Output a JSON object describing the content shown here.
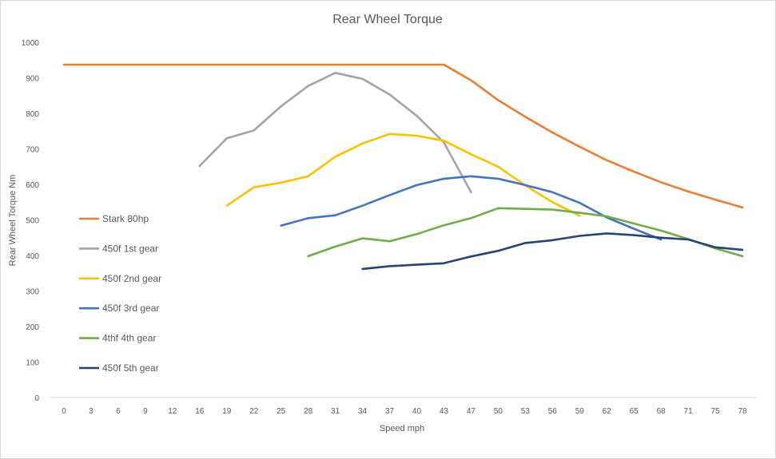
{
  "chart_data": {
    "type": "line",
    "title": "Rear Wheel Torque",
    "xlabel": "Speed mph",
    "ylabel": "Rear Wheel Torque Nm",
    "categories": [
      "0",
      "3",
      "6",
      "9",
      "12",
      "16",
      "19",
      "22",
      "25",
      "28",
      "31",
      "34",
      "37",
      "40",
      "43",
      "47",
      "50",
      "53",
      "56",
      "59",
      "62",
      "65",
      "68",
      "71",
      "75",
      "78"
    ],
    "ylim": [
      0,
      1000
    ],
    "yticks": [
      "0",
      "100",
      "200",
      "300",
      "400",
      "500",
      "600",
      "700",
      "800",
      "900",
      "1000"
    ],
    "grid": false,
    "legend_position": "left-inside",
    "series": [
      {
        "name": "Stark 80hp",
        "color": "#ED7D31",
        "values": [
          937,
          937,
          937,
          937,
          937,
          937,
          937,
          937,
          937,
          937,
          937,
          937,
          937,
          937,
          937,
          893,
          837,
          790,
          746,
          706,
          668,
          636,
          606,
          580,
          557,
          535
        ]
      },
      {
        "name": "450f 1st gear",
        "color": "#A5A5A5",
        "values": [
          null,
          null,
          null,
          null,
          null,
          652,
          730,
          752,
          820,
          877,
          914,
          897,
          853,
          793,
          718,
          578,
          null,
          null,
          null,
          null,
          null,
          null,
          null,
          null,
          null,
          null
        ]
      },
      {
        "name": "450f 2nd gear",
        "color": "#FFC000",
        "values": [
          null,
          null,
          null,
          null,
          null,
          null,
          540,
          592,
          605,
          623,
          678,
          715,
          742,
          737,
          723,
          685,
          650,
          597,
          550,
          512,
          null,
          null,
          null,
          null,
          null,
          null
        ]
      },
      {
        "name": "450f 3rd gear",
        "color": "#4472C4",
        "values": [
          null,
          null,
          null,
          null,
          null,
          null,
          null,
          null,
          484,
          505,
          513,
          540,
          570,
          598,
          616,
          623,
          616,
          598,
          578,
          548,
          507,
          475,
          445,
          null,
          null,
          null
        ]
      },
      {
        "name": "4thf 4th gear",
        "color": "#70AD47",
        "values": [
          null,
          null,
          null,
          null,
          null,
          null,
          null,
          null,
          null,
          398,
          425,
          448,
          440,
          460,
          485,
          505,
          533,
          531,
          529,
          520,
          510,
          490,
          470,
          446,
          420,
          398
        ]
      },
      {
        "name": "450f 5th gear",
        "color": "#264478",
        "values": [
          null,
          null,
          null,
          null,
          null,
          null,
          null,
          null,
          null,
          null,
          null,
          362,
          370,
          374,
          378,
          397,
          413,
          435,
          443,
          455,
          462,
          457,
          450,
          445,
          423,
          416
        ]
      }
    ]
  }
}
